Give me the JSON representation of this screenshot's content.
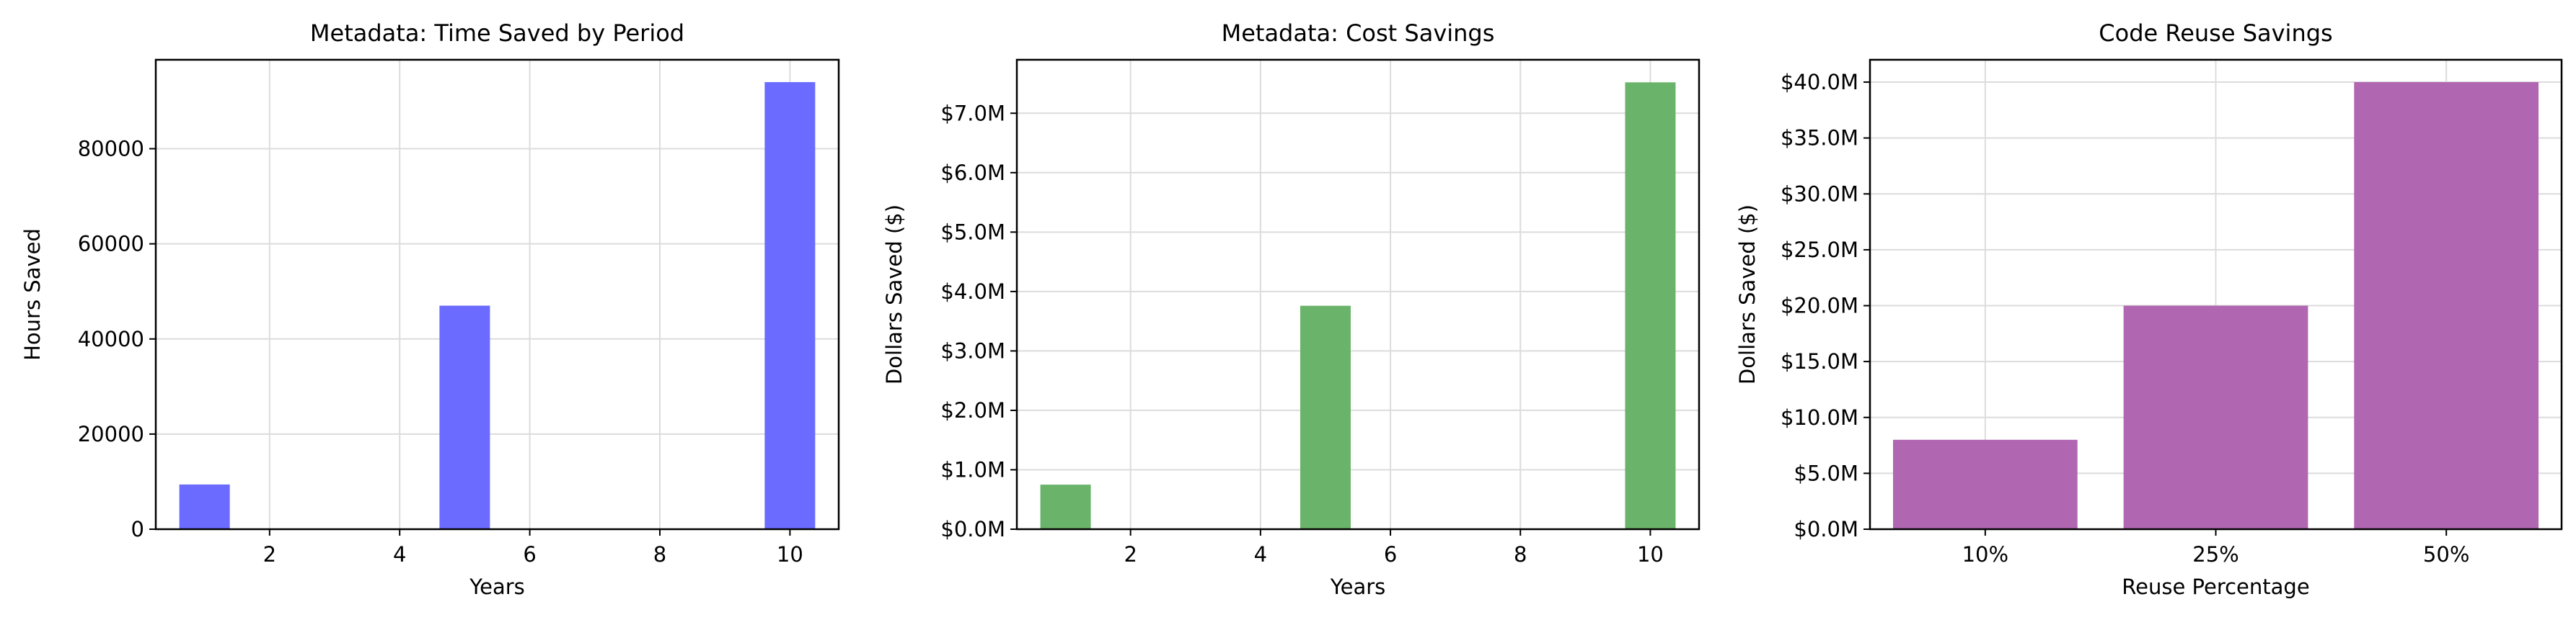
{
  "chart_data": [
    {
      "type": "bar",
      "title": "Metadata: Time Saved by Period",
      "xlabel": "Years",
      "ylabel": "Hours Saved",
      "x": [
        1,
        5,
        10
      ],
      "values": [
        9400,
        47000,
        94000
      ],
      "xlim": [
        0.25,
        10.75
      ],
      "ylim": [
        0,
        98700
      ],
      "xticks": [
        2,
        4,
        6,
        8,
        10
      ],
      "yticks": [
        0,
        20000,
        40000,
        60000,
        80000
      ],
      "ytick_labels": [
        "0",
        "20000",
        "40000",
        "60000",
        "80000"
      ],
      "color": "#6b6bff",
      "grid": true
    },
    {
      "type": "bar",
      "title": "Metadata: Cost Savings",
      "xlabel": "Years",
      "ylabel": "Dollars Saved ($)",
      "x": [
        1,
        5,
        10
      ],
      "values": [
        750000,
        3760000,
        7520000
      ],
      "xlim": [
        0.25,
        10.75
      ],
      "ylim": [
        0,
        7900000
      ],
      "xticks": [
        2,
        4,
        6,
        8,
        10
      ],
      "yticks": [
        0,
        1000000,
        2000000,
        3000000,
        4000000,
        5000000,
        6000000,
        7000000
      ],
      "ytick_labels": [
        "$0.0M",
        "$1.0M",
        "$2.0M",
        "$3.0M",
        "$4.0M",
        "$5.0M",
        "$6.0M",
        "$7.0M"
      ],
      "color": "#6ab36a",
      "grid": true
    },
    {
      "type": "bar",
      "title": "Code Reuse Savings",
      "xlabel": "Reuse Percentage",
      "ylabel": "Dollars Saved ($)",
      "categories": [
        "10%",
        "25%",
        "50%"
      ],
      "values": [
        8000000,
        20000000,
        40000000
      ],
      "ylim": [
        0,
        42000000
      ],
      "yticks": [
        0,
        5000000,
        10000000,
        15000000,
        20000000,
        25000000,
        30000000,
        35000000,
        40000000
      ],
      "ytick_labels": [
        "$0.0M",
        "$5.0M",
        "$10.0M",
        "$15.0M",
        "$20.0M",
        "$25.0M",
        "$30.0M",
        "$35.0M",
        "$40.0M"
      ],
      "color": "#b066b0",
      "grid": true
    }
  ]
}
